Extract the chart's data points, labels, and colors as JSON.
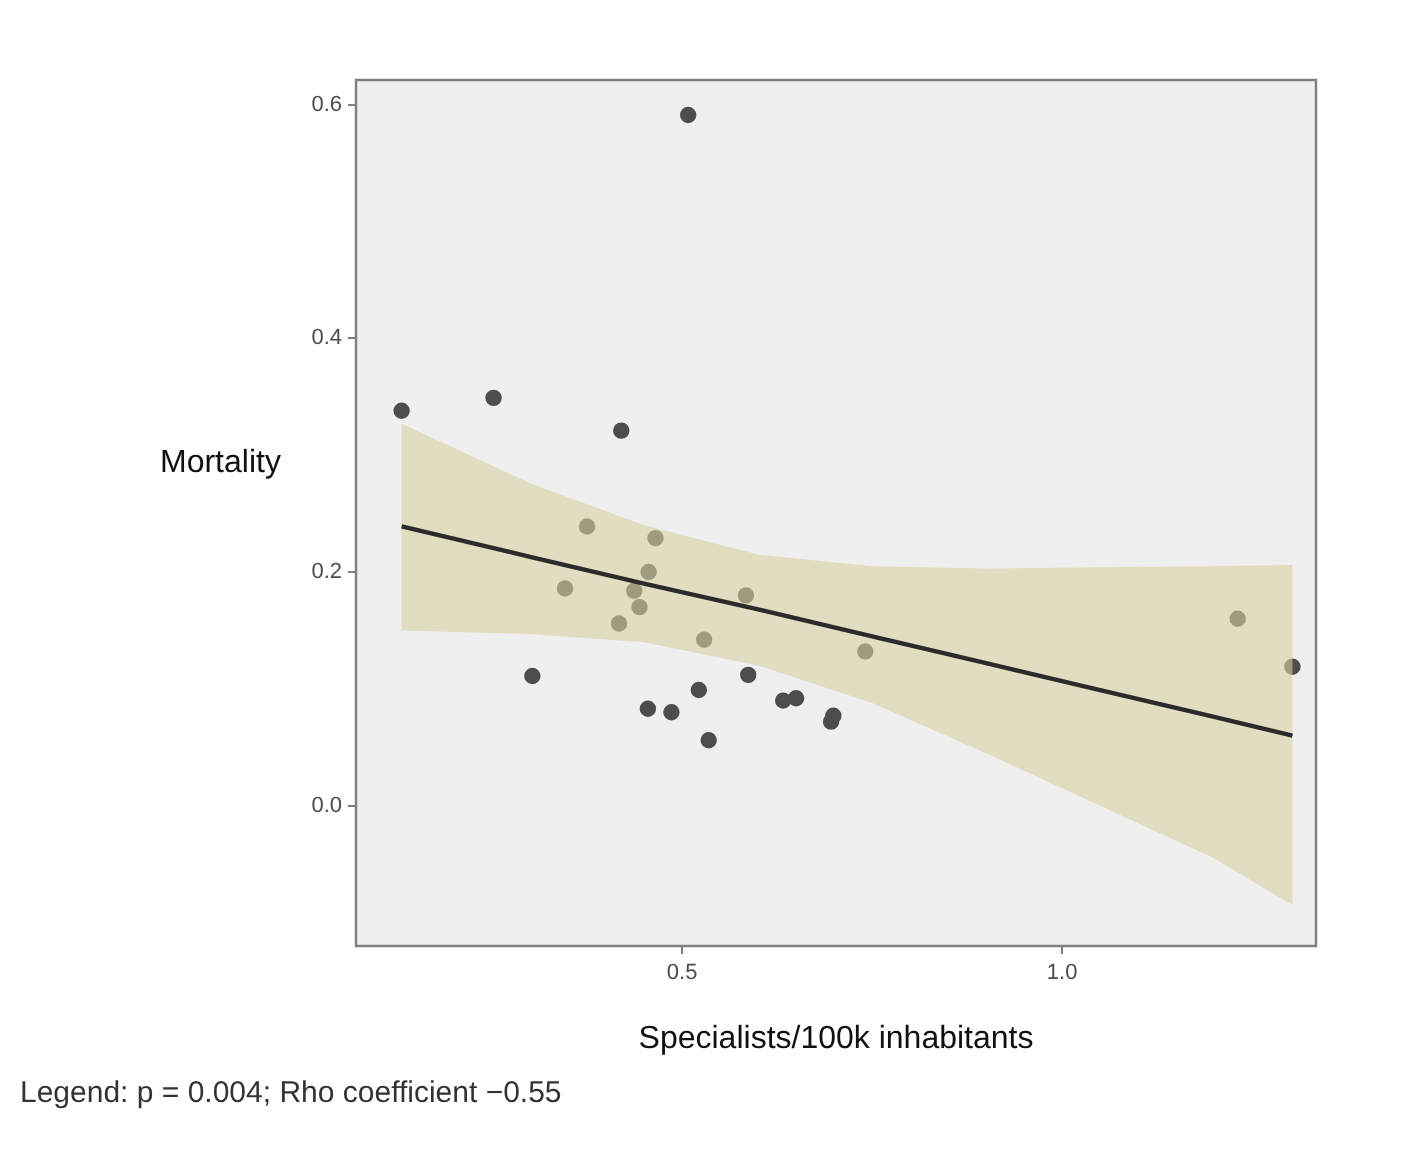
{
  "chart_data": {
    "type": "scatter",
    "xlabel": "Specialists/100k inhabitants",
    "ylabel": "Mortality",
    "annotations": [
      "Legend: p = 0.004; Rho coefficient −0.55"
    ],
    "xlim": [
      0.071,
      1.334
    ],
    "ylim": [
      -0.12,
      0.621
    ],
    "xticks": [
      {
        "value": 0.5,
        "label": "0.5"
      },
      {
        "value": 1.0,
        "label": "1.0"
      }
    ],
    "yticks": [
      {
        "value": 0.0,
        "label": "0.0"
      },
      {
        "value": 0.2,
        "label": "0.2"
      },
      {
        "value": 0.4,
        "label": "0.4"
      },
      {
        "value": 0.6,
        "label": "0.6"
      }
    ],
    "grid": false,
    "legend": false,
    "series": [
      {
        "marker": "circle",
        "color": "#4d4d4d",
        "x": [
          0.131,
          0.252,
          0.42,
          0.375,
          0.465,
          0.456,
          0.346,
          0.437,
          0.444,
          0.417,
          0.584,
          0.529,
          0.303,
          0.587,
          0.522,
          0.455,
          0.486,
          0.535,
          0.633,
          0.65,
          0.699,
          0.696,
          0.741,
          1.231,
          1.303,
          0.508
        ],
        "values": [
          0.338,
          0.349,
          0.321,
          0.239,
          0.229,
          0.2,
          0.186,
          0.184,
          0.17,
          0.156,
          0.18,
          0.142,
          0.111,
          0.112,
          0.099,
          0.083,
          0.08,
          0.056,
          0.09,
          0.092,
          0.077,
          0.072,
          0.132,
          0.16,
          0.119,
          0.591
        ]
      },
      {
        "type": "line",
        "marker": "none",
        "color": "#2b2b2b",
        "x": [
          0.131,
          0.3,
          0.45,
          0.6,
          0.75,
          0.9,
          1.05,
          1.2,
          1.303
        ],
        "values": [
          0.239,
          0.213,
          0.19,
          0.168,
          0.145,
          0.122,
          0.099,
          0.076,
          0.06
        ],
        "lower": [
          0.15,
          0.147,
          0.14,
          0.12,
          0.088,
          0.045,
          0.0,
          -0.045,
          -0.085
        ],
        "upper": [
          0.327,
          0.276,
          0.24,
          0.215,
          0.205,
          0.203,
          0.204,
          0.205,
          0.206
        ]
      }
    ]
  }
}
